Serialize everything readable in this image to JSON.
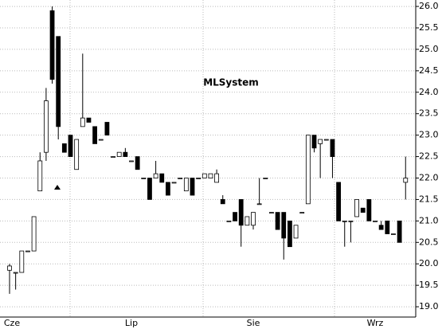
{
  "chart_data": {
    "type": "candlestick",
    "title": "MLSystem",
    "categories": [
      null,
      null,
      null,
      null,
      null,
      null,
      null,
      null,
      null,
      null,
      null,
      null,
      null,
      null,
      null,
      null,
      null,
      null,
      null,
      null,
      "Lip",
      null,
      null,
      null,
      null,
      null,
      null,
      null,
      null,
      null,
      null,
      null,
      null,
      null,
      null,
      null,
      null,
      null,
      null,
      null,
      "Sie",
      null,
      null,
      null,
      null,
      null,
      null,
      null,
      null,
      null,
      null,
      null,
      null,
      null,
      null,
      null,
      null,
      null,
      null,
      null,
      "Wrz",
      null,
      null,
      null,
      null,
      null
    ],
    "label_first": "Cze",
    "open": [
      19.85,
      19.8,
      19.8,
      20.3,
      20.3,
      21.7,
      22.6,
      25.9,
      25.3,
      22.8,
      23.0,
      22.2,
      23.2,
      23.4,
      23.2,
      22.9,
      23.3,
      22.5,
      22.5,
      22.6,
      22.4,
      22.5,
      22.0,
      22.0,
      22.0,
      22.1,
      21.9,
      21.9,
      22.0,
      21.7,
      22.0,
      22.0,
      22.0,
      22.0,
      21.9,
      21.5,
      21.0,
      21.2,
      21.5,
      20.9,
      20.9,
      21.4,
      22.0,
      21.2,
      21.2,
      21.2,
      21.0,
      20.6,
      21.2,
      21.4,
      23.0,
      22.8,
      22.9,
      22.9,
      21.9,
      21.0,
      21.0,
      21.1,
      21.3,
      21.5,
      21.0,
      20.9,
      21.0,
      20.7,
      21.0,
      21.9
    ],
    "high": [
      20.0,
      19.8,
      20.3,
      20.3,
      21.1,
      22.6,
      24.1,
      26.0,
      25.3,
      22.8,
      23.0,
      22.9,
      24.9,
      23.4,
      23.2,
      22.9,
      23.3,
      22.5,
      22.6,
      22.7,
      22.4,
      22.5,
      22.0,
      22.0,
      22.4,
      22.1,
      21.9,
      21.9,
      22.0,
      22.0,
      22.0,
      22.0,
      22.1,
      22.1,
      22.2,
      21.6,
      21.0,
      21.2,
      21.5,
      21.1,
      21.2,
      22.0,
      22.0,
      21.2,
      21.2,
      21.2,
      21.0,
      20.9,
      21.2,
      23.0,
      23.0,
      22.9,
      22.9,
      22.9,
      21.9,
      21.0,
      21.0,
      21.5,
      21.3,
      21.5,
      21.0,
      21.0,
      21.0,
      20.7,
      21.0,
      22.5
    ],
    "low": [
      19.3,
      19.4,
      19.8,
      20.3,
      20.3,
      21.7,
      22.4,
      24.2,
      22.9,
      22.6,
      22.5,
      22.2,
      23.2,
      23.3,
      22.8,
      22.9,
      23.0,
      22.5,
      22.5,
      22.5,
      22.4,
      22.2,
      22.0,
      21.5,
      22.0,
      21.9,
      21.6,
      21.9,
      22.0,
      21.7,
      21.6,
      22.0,
      22.0,
      22.0,
      21.9,
      21.4,
      21.0,
      21.0,
      20.4,
      20.9,
      20.8,
      21.4,
      22.0,
      21.2,
      20.8,
      20.1,
      20.4,
      20.6,
      21.2,
      21.4,
      22.6,
      22.0,
      22.9,
      22.0,
      21.0,
      20.4,
      20.5,
      21.1,
      21.2,
      21.0,
      21.0,
      20.8,
      20.7,
      20.7,
      20.5,
      21.5
    ],
    "close": [
      19.95,
      19.8,
      20.3,
      20.3,
      21.1,
      22.4,
      23.8,
      24.3,
      23.2,
      22.6,
      22.5,
      22.9,
      23.4,
      23.3,
      22.8,
      22.9,
      23.0,
      22.5,
      22.6,
      22.5,
      22.4,
      22.2,
      22.0,
      21.5,
      22.1,
      21.9,
      21.6,
      21.9,
      22.0,
      22.0,
      21.6,
      22.0,
      22.1,
      22.1,
      22.1,
      21.4,
      21.0,
      21.0,
      20.9,
      21.1,
      21.2,
      21.4,
      22.0,
      21.2,
      20.8,
      20.6,
      20.4,
      20.9,
      21.2,
      23.0,
      22.7,
      22.9,
      22.9,
      22.5,
      21.0,
      21.0,
      21.0,
      21.5,
      21.2,
      21.0,
      21.0,
      20.8,
      20.7,
      20.7,
      20.5,
      22.0
    ],
    "ylim": [
      18.76,
      26.15
    ],
    "yticks": [
      {
        "value": 19,
        "label": "19.0"
      },
      {
        "value": 19.5,
        "label": "19.5"
      },
      {
        "value": 20,
        "label": "20.0"
      },
      {
        "value": 20.5,
        "label": "20.5"
      },
      {
        "value": 21,
        "label": "21.0"
      },
      {
        "value": 21.5,
        "label": "21.5"
      },
      {
        "value": 22,
        "label": "22.0"
      },
      {
        "value": 22.5,
        "label": "22.5"
      },
      {
        "value": 23,
        "label": "23.0"
      },
      {
        "value": 23.5,
        "label": "23.5"
      },
      {
        "value": 24,
        "label": "24.0"
      },
      {
        "value": 24.5,
        "label": "24.5"
      },
      {
        "value": 25,
        "label": "25.0"
      },
      {
        "value": 25.5,
        "label": "25.5"
      },
      {
        "value": 26,
        "label": "26.0"
      }
    ],
    "grid": true,
    "up_color": "#ffffff",
    "down_color": "#000000"
  }
}
